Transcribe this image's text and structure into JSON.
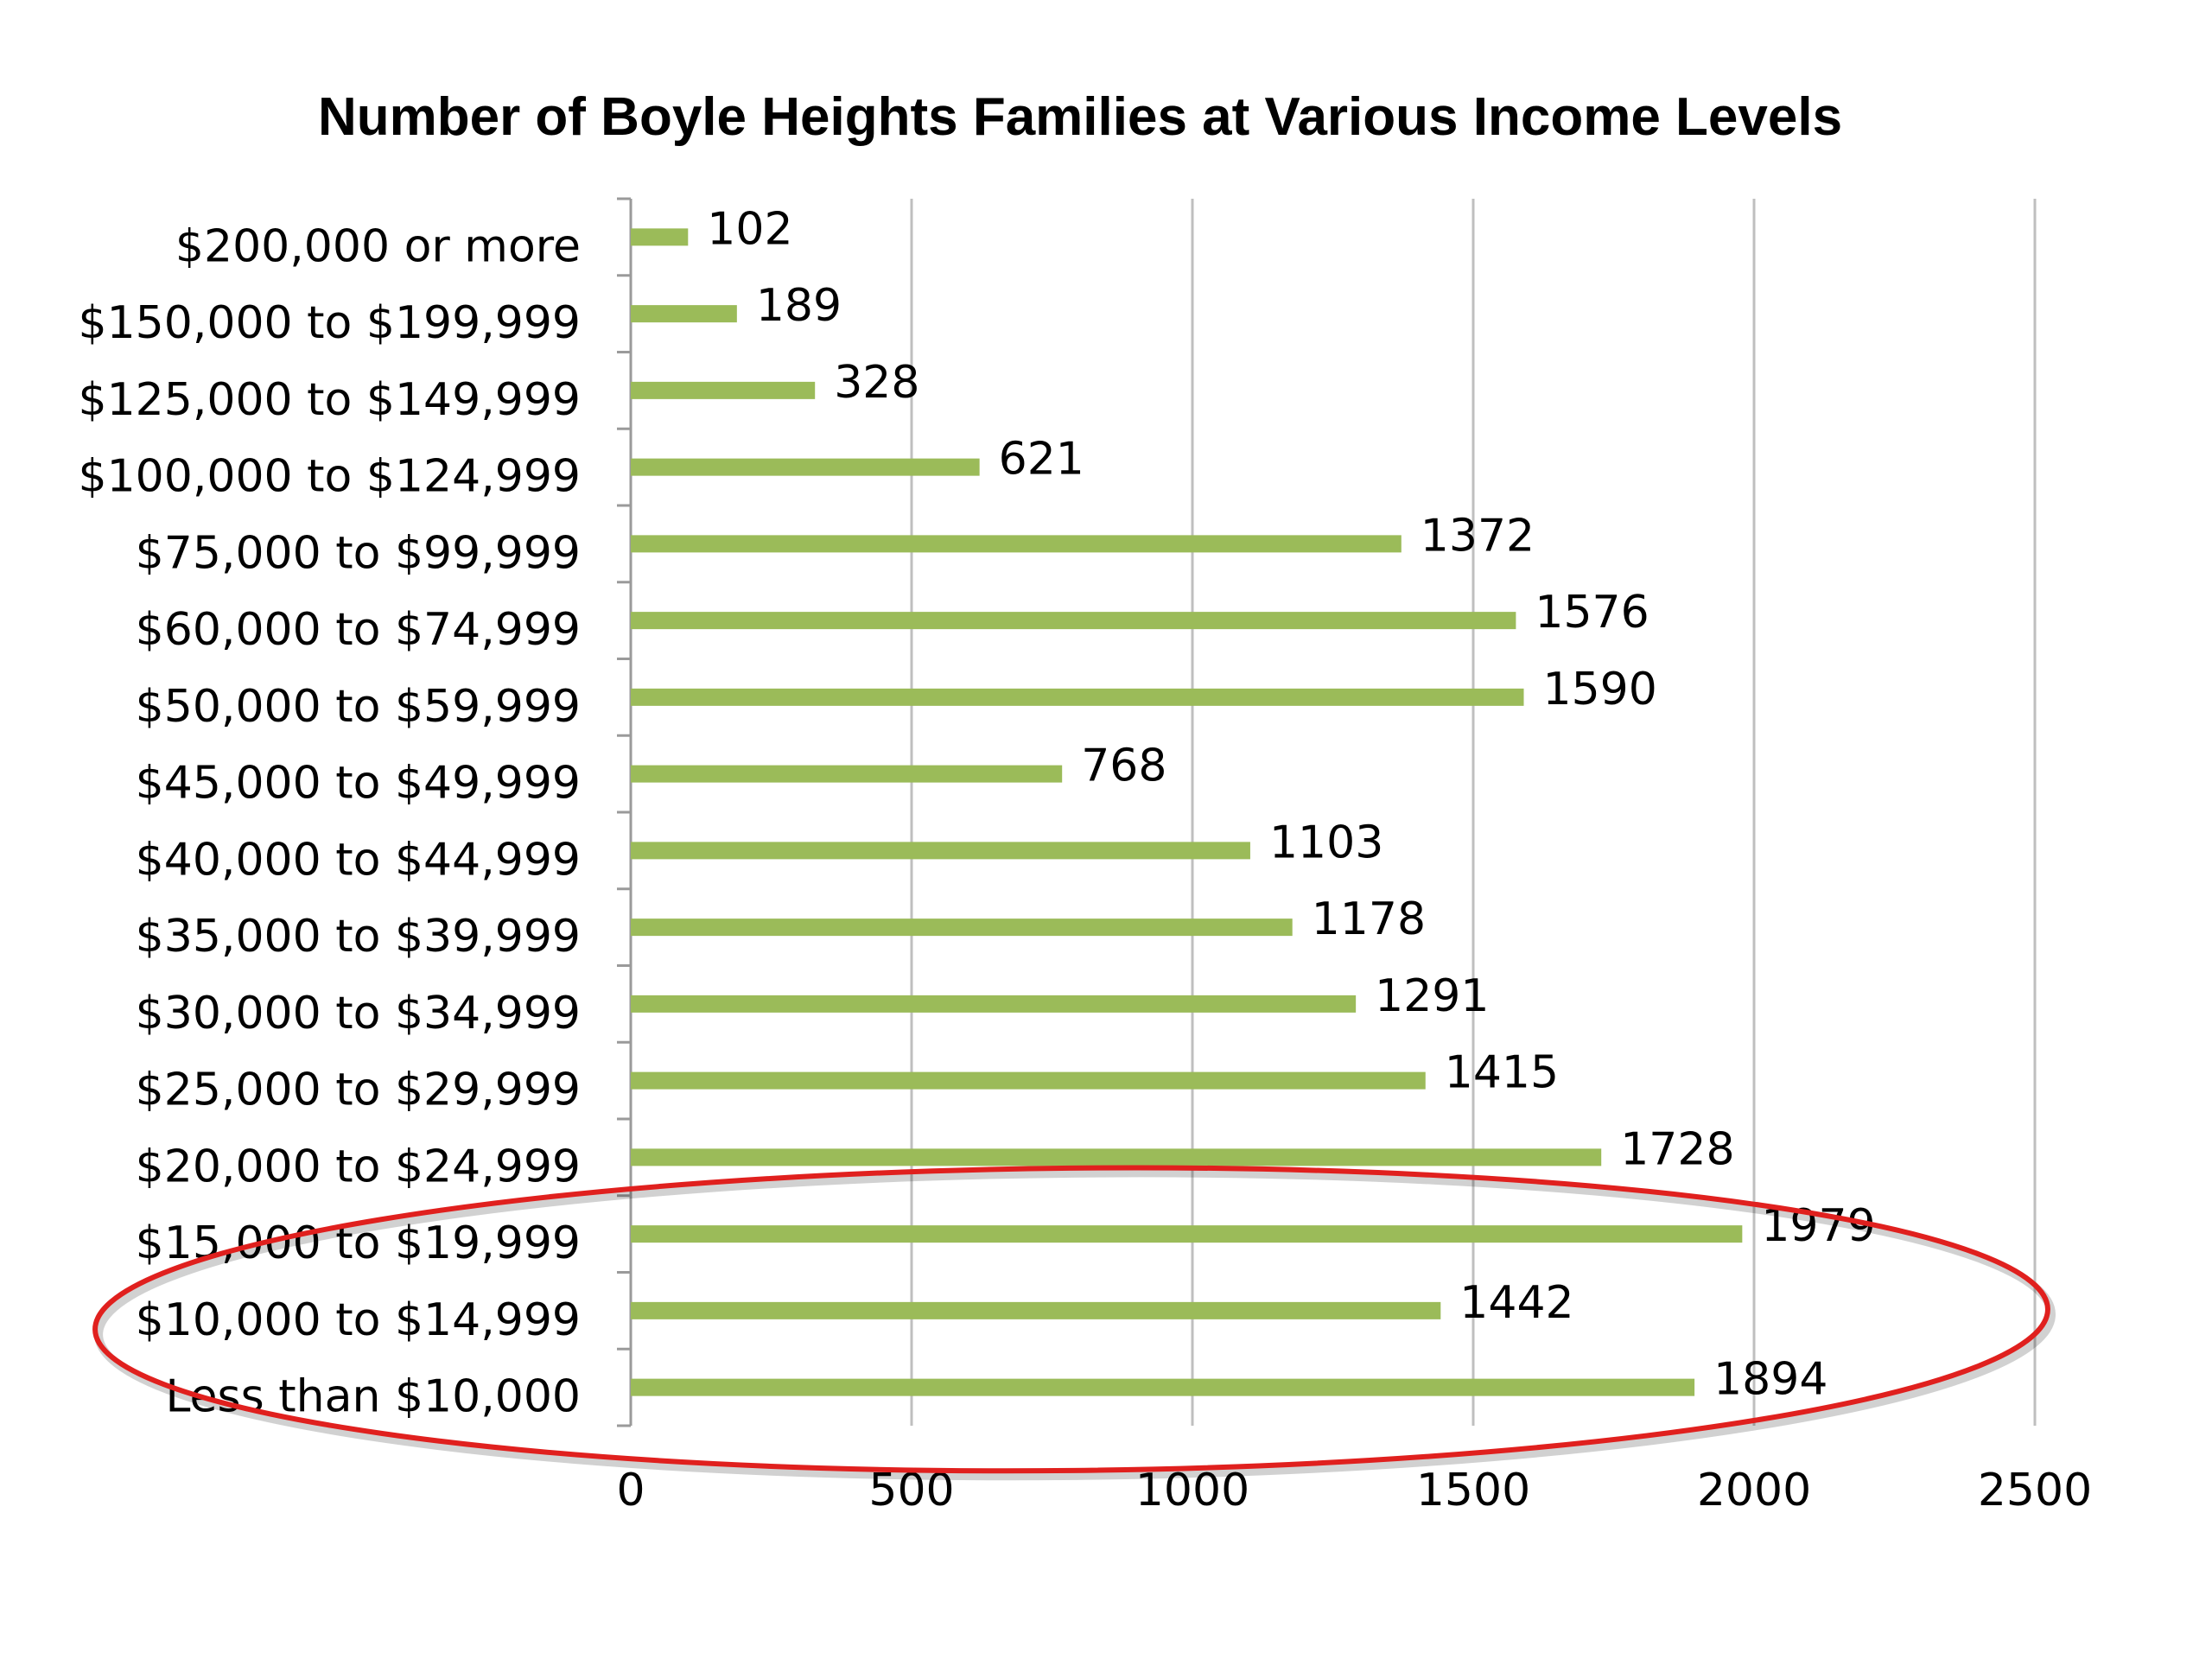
{
  "chart_data": {
    "type": "bar",
    "orientation": "horizontal",
    "title": "Number of Boyle Heights Families at Various Income Levels",
    "xlabel": "",
    "ylabel": "",
    "categories": [
      "Less than $10,000",
      "$10,000 to $14,999",
      "$15,000 to $19,999",
      "$20,000 to $24,999",
      "$25,000 to $29,999",
      "$30,000 to $34,999",
      "$35,000 to $39,999",
      "$40,000 to $44,999",
      "$45,000 to $49,999",
      "$50,000 to $59,999",
      "$60,000 to $74,999",
      "$75,000 to $99,999",
      "$100,000 to $124,999",
      "$125,000 to $149,999",
      "$150,000 to $199,999",
      "$200,000 or more"
    ],
    "values": [
      1894,
      1442,
      1979,
      1728,
      1415,
      1291,
      1178,
      1103,
      768,
      1590,
      1576,
      1372,
      621,
      328,
      189,
      102
    ],
    "xlim": [
      0,
      2500
    ],
    "x_ticks": [
      "0",
      "500",
      "1000",
      "1500",
      "2000",
      "2500"
    ],
    "grid": "vertical",
    "legend": "none",
    "data_labels": true,
    "colors": {
      "bar": "#9bbb59",
      "highlight_ellipse": "#e0201e",
      "grid": "#bfbfbf"
    },
    "annotations": [
      {
        "type": "ellipse",
        "highlights": [
          "Less than $10,000",
          "$10,000 to $14,999",
          "$15,000 to $19,999"
        ]
      }
    ]
  }
}
